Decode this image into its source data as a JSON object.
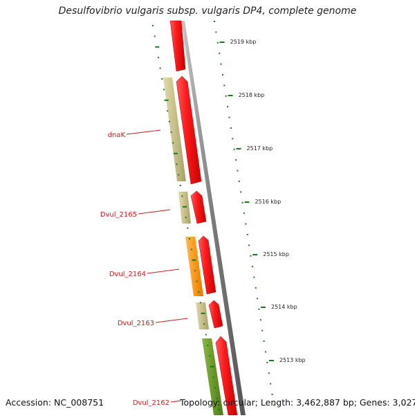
{
  "title": "Desulfovibrio vulgaris subsp. vulgaris DP4, complete genome",
  "ticks": [
    "2519 kbp",
    "2518 kbp",
    "2517 kbp",
    "2516 kbp",
    "2515 kbp",
    "2514 kbp",
    "2513 kbp"
  ],
  "gene_labels": [
    "dnaK",
    "Dvul_2165",
    "Dvul_2164",
    "Dvul_2163",
    "Dvul_2162"
  ],
  "footer": {
    "accession": "Accession: NC_008751",
    "topology": "Topology: circular; Length: 3,462,887 bp; Genes: 3,027"
  },
  "colors": {
    "cds": "#ff1a1a",
    "gene_tan": "#c8c08a",
    "gene_orange": "#ff9a1a",
    "gene_green": "#6b9a2a",
    "backbone": "#7a7a7a",
    "tick": "#1a7a1a",
    "label": "#cc1a1a"
  }
}
